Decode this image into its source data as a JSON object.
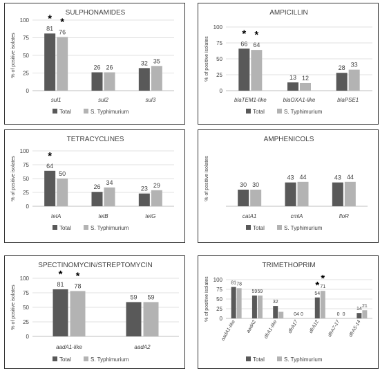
{
  "colors": {
    "total": "#595959",
    "typhimurium": "#b3b3b3",
    "grid": "#d9d9d9",
    "axis": "#bfbfbf",
    "text": "#404040"
  },
  "legend": {
    "total": "Total",
    "typhimurium": "S. Typhimurium"
  },
  "chart_data": [
    {
      "type": "bar",
      "title": "SULPHONAMIDES",
      "ylabel": "% of positive isolates",
      "ylim": [
        0,
        100
      ],
      "yticks": [
        0,
        25,
        50,
        75,
        100
      ],
      "categories": [
        "sul1",
        "sul2",
        "sul3"
      ],
      "series": [
        {
          "name": "Total",
          "values": [
            81,
            26,
            32
          ]
        },
        {
          "name": "S. Typhimurium",
          "values": [
            76,
            26,
            35
          ]
        }
      ],
      "significant": [
        [
          true,
          true
        ],
        [
          false,
          false
        ],
        [
          false,
          false
        ]
      ],
      "legend_position": "bottom",
      "grid": true
    },
    {
      "type": "bar",
      "title": "AMPICILLIN",
      "ylabel": "% of positive isolates",
      "ylim": [
        0,
        100
      ],
      "yticks": [
        0,
        25,
        50,
        75,
        100
      ],
      "categories": [
        "blaTEM1-like",
        "blaOXA1-like",
        "blaPSE1"
      ],
      "series": [
        {
          "name": "Total",
          "values": [
            66,
            13,
            28
          ]
        },
        {
          "name": "S. Typhimurium",
          "values": [
            64,
            12,
            33
          ]
        }
      ],
      "significant": [
        [
          true,
          true
        ],
        [
          false,
          false
        ],
        [
          false,
          false
        ]
      ],
      "legend_position": "bottom",
      "grid": true
    },
    {
      "type": "bar",
      "title": "TETRACYCLINES",
      "ylabel": "% of positive isolates",
      "ylim": [
        0,
        100
      ],
      "yticks": [
        0,
        25,
        50,
        75,
        100
      ],
      "categories": [
        "tetA",
        "tetB",
        "tetG"
      ],
      "series": [
        {
          "name": "Total",
          "values": [
            64,
            26,
            23
          ]
        },
        {
          "name": "S. Typhimurium",
          "values": [
            50,
            34,
            29
          ]
        }
      ],
      "significant": [
        [
          true,
          false
        ],
        [
          false,
          false
        ],
        [
          false,
          false
        ]
      ],
      "legend_position": "bottom",
      "grid": true
    },
    {
      "type": "bar",
      "title": "AMPHENICOLS",
      "ylabel": "% of positive isolates",
      "ylim": [
        0,
        100
      ],
      "yticks": [],
      "categories": [
        "catA1",
        "cmlA",
        "floR"
      ],
      "series": [
        {
          "name": "Total",
          "values": [
            30,
            43,
            43
          ]
        },
        {
          "name": "S. Typhimurium",
          "values": [
            30,
            44,
            44
          ]
        }
      ],
      "significant": [
        [
          false,
          false
        ],
        [
          false,
          false
        ],
        [
          false,
          false
        ]
      ],
      "legend_position": "bottom",
      "grid": false
    },
    {
      "type": "bar",
      "title": "SPECTINOMYCIN/STREPTOMYCIN",
      "ylabel": "% of positive isolates",
      "ylim": [
        0,
        100
      ],
      "yticks": [
        0,
        25,
        50,
        75,
        100
      ],
      "categories": [
        "aadA1-like",
        "aadA2"
      ],
      "series": [
        {
          "name": "Total",
          "values": [
            81,
            59
          ]
        },
        {
          "name": "S. Typhimurium",
          "values": [
            78,
            59
          ]
        }
      ],
      "significant": [
        [
          true,
          true
        ],
        [
          false,
          false
        ]
      ],
      "legend_position": "bottom",
      "grid": true
    },
    {
      "type": "bar",
      "title": "TRIMETHOPRIM",
      "ylabel": "% of positive isolates",
      "ylim": [
        0,
        100
      ],
      "yticks": [
        0,
        25,
        50,
        75,
        100
      ],
      "categories": [
        "aadA1-like",
        "aadA2",
        "dfrA1-like",
        "dfrA17",
        "dfrA12",
        "dfrA7-17",
        "dfrA5-14"
      ],
      "series": [
        {
          "name": "Total",
          "values": [
            81,
            59,
            32,
            0,
            54,
            0,
            14
          ]
        },
        {
          "name": "S. Typhimurium",
          "values": [
            78,
            59,
            17,
            0,
            71,
            0,
            21
          ]
        }
      ],
      "value_labels": [
        [
          "81",
          "78"
        ],
        [
          "59",
          "59"
        ],
        [
          "32",
          ""
        ],
        [
          "04",
          "0"
        ],
        [
          "54",
          "71"
        ],
        [
          "0",
          "0"
        ],
        [
          "14",
          "21"
        ]
      ],
      "significant": [
        [
          false,
          false
        ],
        [
          false,
          false
        ],
        [
          false,
          false
        ],
        [
          false,
          false
        ],
        [
          true,
          true
        ],
        [
          false,
          false
        ],
        [
          false,
          false
        ]
      ],
      "legend_position": "bottom",
      "grid": true,
      "rotated_labels": true
    }
  ]
}
